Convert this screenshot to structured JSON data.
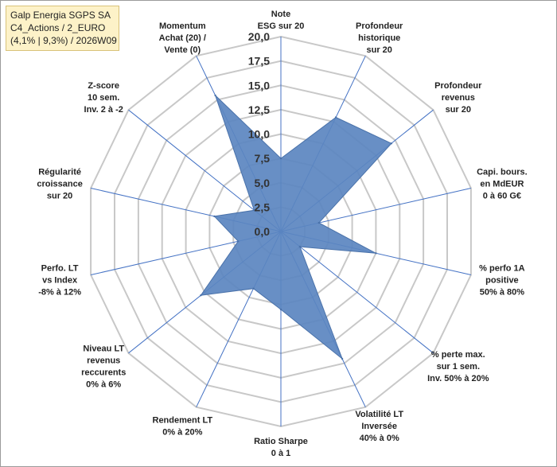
{
  "title": {
    "line1": "Galp Energia SGPS SA",
    "line2": "C4_Actions / 2_EURO",
    "line3": "(4,1% | 9,3%) / 2026W09"
  },
  "chart_data": {
    "type": "radar",
    "rmin": 0,
    "rmax": 20,
    "ticks": [
      "0,0",
      "2,5",
      "5,0",
      "7,5",
      "10,0",
      "12,5",
      "15,0",
      "17,5",
      "20,0"
    ],
    "tick_values": [
      0,
      2.5,
      5,
      7.5,
      10,
      12.5,
      15,
      17.5,
      20
    ],
    "axes": [
      {
        "label": [
          "Note",
          "ESG sur 20"
        ],
        "value": 7.5
      },
      {
        "label": [
          "Profondeur",
          "historique",
          "sur 20"
        ],
        "value": 13
      },
      {
        "label": [
          "Profondeur",
          "revenus",
          "sur 20"
        ],
        "value": 14.5
      },
      {
        "label": [
          "Capi. bours.",
          "en MdEUR",
          "0 à 60 G€"
        ],
        "value": 4
      },
      {
        "label": [
          "% perfo 1A",
          "positive",
          "50% à 80%"
        ],
        "value": 10
      },
      {
        "label": [
          "% perte max.",
          "sur 1 sem.",
          "Inv. 50% à 20%"
        ],
        "value": 2.5
      },
      {
        "label": [
          "Volatilité LT",
          "Inversée",
          "40% à 0%"
        ],
        "value": 14.5
      },
      {
        "label": [
          "Ratio Sharpe",
          "0 à 1"
        ],
        "value": 8
      },
      {
        "label": [
          "Rendement LT",
          "0% à 20%"
        ],
        "value": 6.5
      },
      {
        "label": [
          "Niveau LT",
          "revenus",
          "reccurents",
          "0% à 6%"
        ],
        "value": 10.5
      },
      {
        "label": [
          "Perfo. LT",
          "vs Index",
          "-8% à 12%"
        ],
        "value": 4.5
      },
      {
        "label": [
          "Régularité",
          "croissance",
          "sur 20"
        ],
        "value": 7
      },
      {
        "label": [
          "Z-score",
          "10 sem.",
          "Inv. 2 à -2"
        ],
        "value": 3.5
      },
      {
        "label": [
          "Momentum",
          "Achat (20) /",
          "Vente (0)"
        ],
        "value": 15.5
      }
    ],
    "colors": {
      "fill": "#5b86c0",
      "stroke": "#4a72aa",
      "grid": "#c8c8c8",
      "spoke": "#4472c4"
    }
  }
}
